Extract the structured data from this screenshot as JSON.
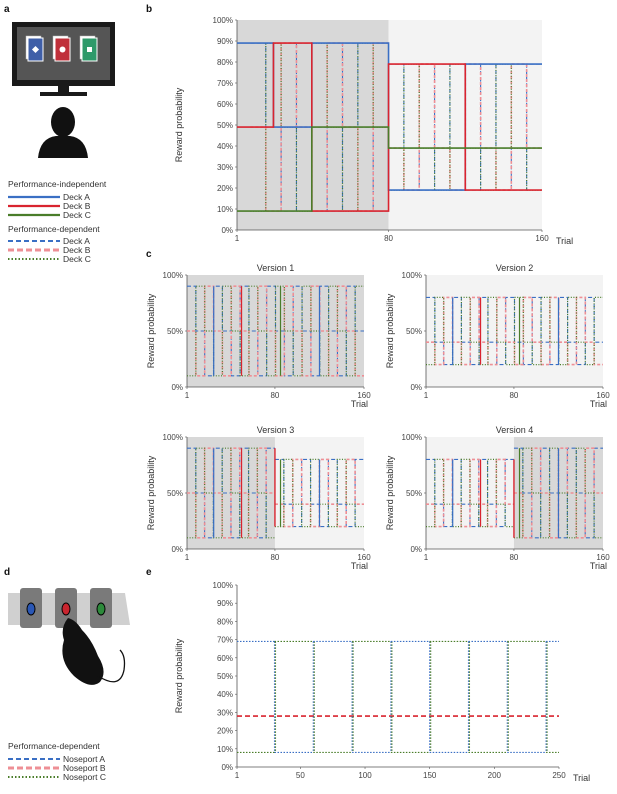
{
  "colors": {
    "deck_a": "#3a6fc4",
    "deck_b": "#d9242f",
    "deck_c": "#4a7d2a",
    "shade": "#d8d8d8",
    "shade_light": "#f3f3f3",
    "gridline": "#888888"
  },
  "panel_labels": {
    "a": "a",
    "b": "b",
    "c": "c",
    "d": "d",
    "e": "e"
  },
  "legend_a": {
    "heading_independent": "Performance-independent",
    "heading_dependent": "Performance-dependent",
    "items": [
      "Deck A",
      "Deck B",
      "Deck C"
    ]
  },
  "legend_d": {
    "heading": "Performance-dependent",
    "items": [
      "Noseport A",
      "Noseport B",
      "Noseport C"
    ]
  },
  "illustration_a": {
    "card_symbols": [
      "diamond",
      "circle",
      "square"
    ],
    "icons": [
      "monitor-icon",
      "person-silhouette-icon",
      "card-deck-icon"
    ]
  },
  "illustration_d": {
    "icons": [
      "noseport-panel-icon",
      "rat-silhouette-icon"
    ]
  },
  "chart_data": [
    {
      "id": "b",
      "type": "line",
      "title": "",
      "ylabel": "Reward probability",
      "xlabel": "Trial",
      "xticks": [
        "1",
        "80",
        "160"
      ],
      "xlim": [
        1,
        160
      ],
      "yticks": [
        "0%",
        "10%",
        "20%",
        "30%",
        "40%",
        "50%",
        "60%",
        "70%",
        "80%",
        "90%",
        "100%"
      ],
      "ylim": [
        0,
        100
      ],
      "legend": "panel a",
      "series": [
        {
          "name": "Deck A",
          "style": "solid",
          "points": [
            [
              1,
              89
            ],
            [
              20,
              89
            ],
            [
              20,
              49
            ],
            [
              40,
              49
            ],
            [
              40,
              89
            ],
            [
              80,
              89
            ],
            [
              80,
              19
            ],
            [
              120,
              19
            ],
            [
              120,
              79
            ],
            [
              160,
              79
            ]
          ]
        },
        {
          "name": "Deck B",
          "style": "solid",
          "points": [
            [
              1,
              49
            ],
            [
              20,
              49
            ],
            [
              20,
              89
            ],
            [
              40,
              89
            ],
            [
              40,
              9
            ],
            [
              80,
              9
            ],
            [
              80,
              79
            ],
            [
              120,
              79
            ],
            [
              120,
              19
            ],
            [
              160,
              19
            ]
          ]
        },
        {
          "name": "Deck C",
          "style": "solid",
          "points": [
            [
              1,
              9
            ],
            [
              20,
              9
            ],
            [
              20,
              9
            ],
            [
              40,
              9
            ],
            [
              40,
              49
            ],
            [
              80,
              49
            ],
            [
              80,
              39
            ],
            [
              120,
              39
            ],
            [
              120,
              39
            ],
            [
              160,
              39
            ]
          ]
        }
      ]
    },
    {
      "id": "c1",
      "type": "line",
      "title": "Version 1",
      "ylabel": "Reward probability",
      "xlabel": "Trial",
      "xticks": [
        "1",
        "80",
        "160"
      ],
      "yticks": [
        "0%",
        "50%",
        "100%"
      ],
      "xlim": [
        1,
        160
      ],
      "ylim": [
        0,
        100
      ],
      "levels": [
        90,
        50,
        10
      ],
      "shaded": [
        [
          1,
          160
        ]
      ]
    },
    {
      "id": "c2",
      "type": "line",
      "title": "Version 2",
      "ylabel": "Reward probability",
      "xlabel": "Trial",
      "xticks": [
        "1",
        "80",
        "160"
      ],
      "yticks": [
        "0%",
        "50%",
        "100%"
      ],
      "xlim": [
        1,
        160
      ],
      "ylim": [
        0,
        100
      ],
      "levels": [
        80,
        40,
        20
      ],
      "shaded": []
    },
    {
      "id": "c3",
      "type": "line",
      "title": "Version 3",
      "ylabel": "Reward probability",
      "xlabel": "Trial",
      "xticks": [
        "1",
        "80",
        "160"
      ],
      "yticks": [
        "0%",
        "50%",
        "100%"
      ],
      "xlim": [
        1,
        160
      ],
      "ylim": [
        0,
        100
      ],
      "levels": [
        90,
        50,
        10
      ],
      "levels2": [
        80,
        40,
        20
      ],
      "shaded": [
        [
          1,
          80
        ]
      ]
    },
    {
      "id": "c4",
      "type": "line",
      "title": "Version 4",
      "ylabel": "Reward probability",
      "xlabel": "Trial",
      "xticks": [
        "1",
        "80",
        "160"
      ],
      "yticks": [
        "0%",
        "50%",
        "100%"
      ],
      "xlim": [
        1,
        160
      ],
      "ylim": [
        0,
        100
      ],
      "levels": [
        80,
        40,
        20
      ],
      "levels2": [
        90,
        50,
        10
      ],
      "shaded": [
        [
          80,
          160
        ]
      ]
    },
    {
      "id": "e",
      "type": "line",
      "title": "",
      "ylabel": "Reward probability",
      "xlabel": "Trial",
      "xticks": [
        "1",
        "50",
        "100",
        "150",
        "200",
        "250"
      ],
      "xlim": [
        1,
        250
      ],
      "yticks": [
        "0%",
        "10%",
        "20%",
        "30%",
        "40%",
        "50%",
        "60%",
        "70%",
        "80%",
        "90%",
        "100%"
      ],
      "ylim": [
        0,
        100
      ],
      "levels": [
        69,
        28,
        8
      ],
      "switches": [
        30,
        60,
        90,
        120,
        150,
        180,
        210,
        240
      ]
    }
  ]
}
